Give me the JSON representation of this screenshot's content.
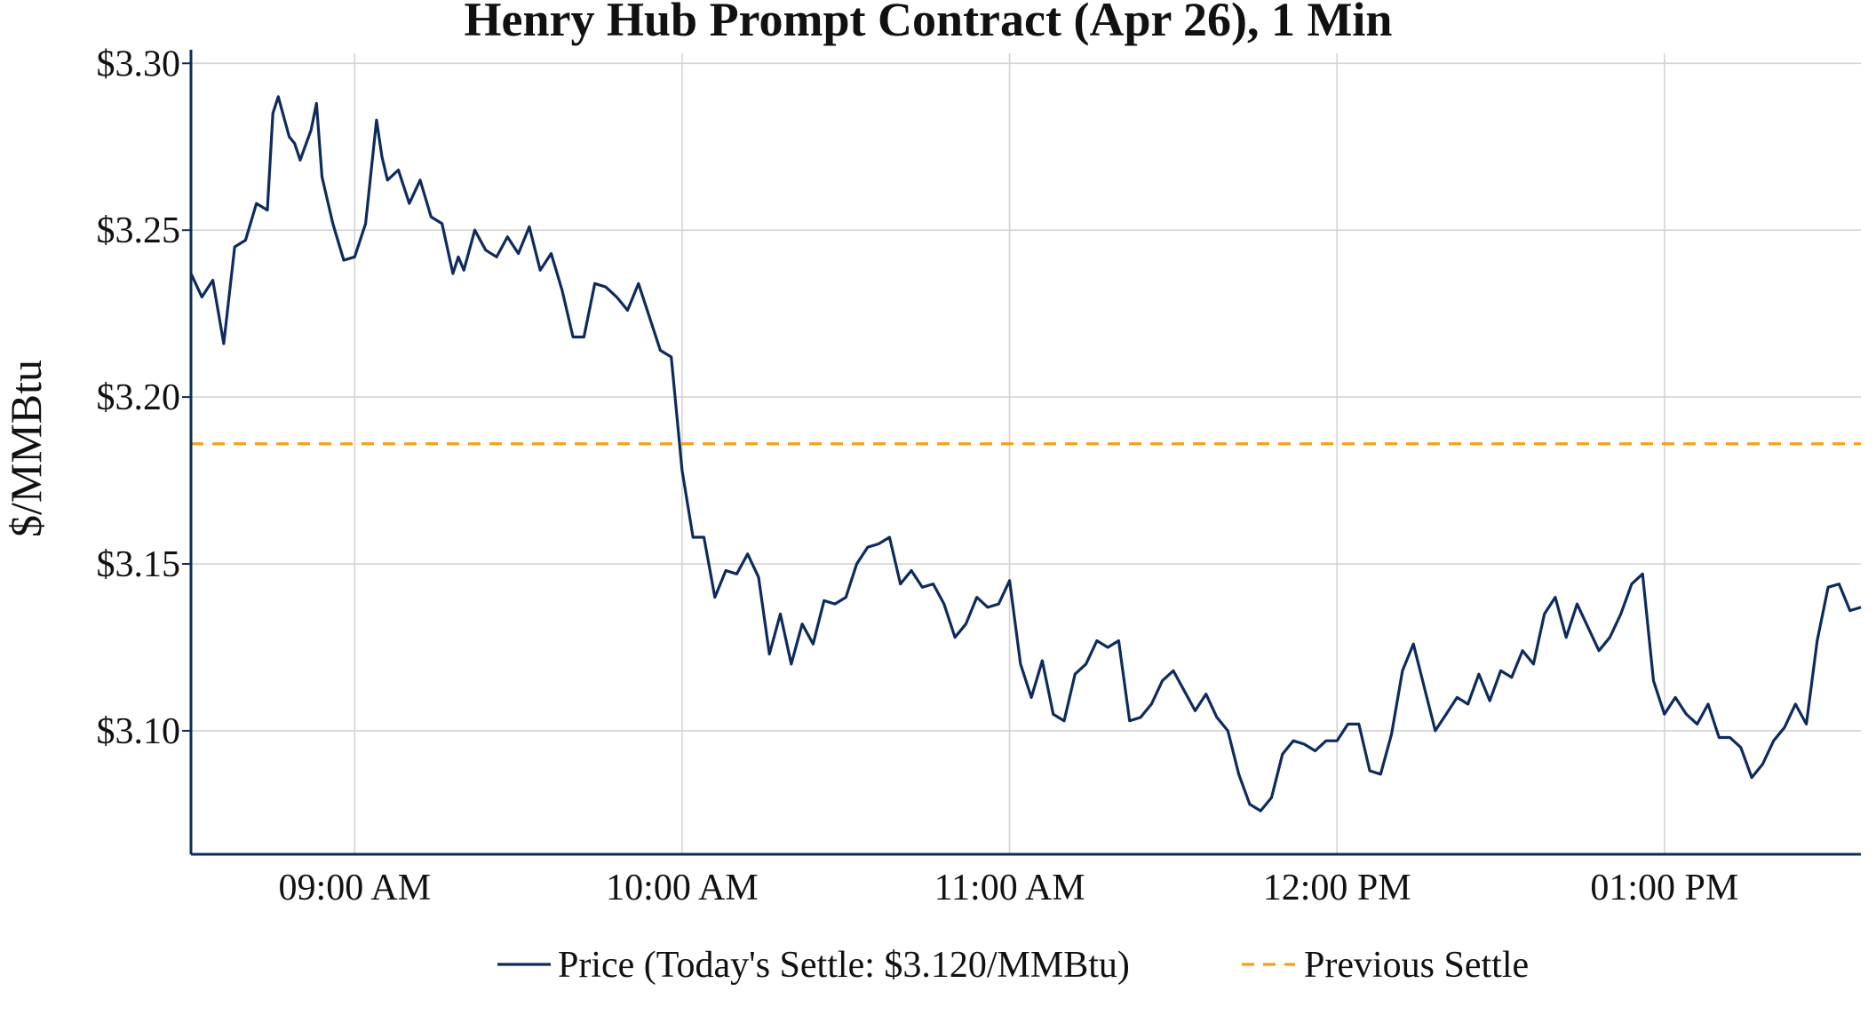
{
  "chart_data": {
    "type": "line",
    "title": "Henry Hub Prompt Contract (Apr 26), 1 Min",
    "ylabel": "$/MMBtu",
    "xlabel": "",
    "xlim": [
      "08:30",
      "13:36"
    ],
    "ylim": [
      3.063,
      3.303
    ],
    "yticks": [
      3.1,
      3.15,
      3.2,
      3.25,
      3.3
    ],
    "ytick_labels": [
      "$3.10",
      "$3.15",
      "$3.20",
      "$3.25",
      "$3.30"
    ],
    "xticks": [
      "09:00",
      "10:00",
      "11:00",
      "12:00",
      "13:00"
    ],
    "xtick_labels": [
      "09:00 AM",
      "10:00 AM",
      "11:00 AM",
      "12:00 PM",
      "01:00 PM"
    ],
    "grid": true,
    "legend_position": "bottom-center",
    "series": [
      {
        "name": "Price (Today's Settle: $3.120/MMBtu)",
        "color": "#0d2b5c",
        "style": "solid",
        "x": [
          "08:30",
          "08:32",
          "08:34",
          "08:36",
          "08:38",
          "08:40",
          "08:42",
          "08:44",
          "08:45",
          "08:46",
          "08:48",
          "08:49",
          "08:50",
          "08:52",
          "08:53",
          "08:54",
          "08:56",
          "08:58",
          "09:00",
          "09:02",
          "09:04",
          "09:05",
          "09:06",
          "09:08",
          "09:10",
          "09:12",
          "09:14",
          "09:16",
          "09:18",
          "09:19",
          "09:20",
          "09:22",
          "09:24",
          "09:26",
          "09:28",
          "09:30",
          "09:32",
          "09:34",
          "09:36",
          "09:38",
          "09:40",
          "09:42",
          "09:44",
          "09:46",
          "09:48",
          "09:50",
          "09:52",
          "09:54",
          "09:56",
          "09:58",
          "10:00",
          "10:02",
          "10:04",
          "10:06",
          "10:08",
          "10:10",
          "10:12",
          "10:14",
          "10:16",
          "10:18",
          "10:20",
          "10:22",
          "10:24",
          "10:26",
          "10:28",
          "10:30",
          "10:32",
          "10:34",
          "10:36",
          "10:38",
          "10:40",
          "10:42",
          "10:44",
          "10:46",
          "10:48",
          "10:50",
          "10:52",
          "10:54",
          "10:56",
          "10:58",
          "11:00",
          "11:02",
          "11:04",
          "11:06",
          "11:08",
          "11:10",
          "11:12",
          "11:14",
          "11:16",
          "11:18",
          "11:20",
          "11:22",
          "11:24",
          "11:26",
          "11:28",
          "11:30",
          "11:32",
          "11:34",
          "11:36",
          "11:38",
          "11:40",
          "11:42",
          "11:44",
          "11:46",
          "11:48",
          "11:50",
          "11:52",
          "11:54",
          "11:56",
          "11:58",
          "12:00",
          "12:02",
          "12:04",
          "12:06",
          "12:08",
          "12:10",
          "12:12",
          "12:14",
          "12:16",
          "12:18",
          "12:20",
          "12:22",
          "12:24",
          "12:26",
          "12:28",
          "12:30",
          "12:32",
          "12:34",
          "12:36",
          "12:38",
          "12:40",
          "12:42",
          "12:44",
          "12:46",
          "12:48",
          "12:50",
          "12:52",
          "12:54",
          "12:56",
          "12:58",
          "13:00",
          "13:02",
          "13:04",
          "13:06",
          "13:08",
          "13:10",
          "13:12",
          "13:14",
          "13:16",
          "13:18",
          "13:20",
          "13:22",
          "13:24",
          "13:26",
          "13:28",
          "13:30",
          "13:32",
          "13:34",
          "13:36"
        ],
        "values": [
          3.237,
          3.23,
          3.235,
          3.216,
          3.245,
          3.247,
          3.258,
          3.256,
          3.285,
          3.29,
          3.278,
          3.276,
          3.271,
          3.28,
          3.288,
          3.266,
          3.252,
          3.241,
          3.242,
          3.252,
          3.283,
          3.272,
          3.265,
          3.268,
          3.258,
          3.265,
          3.254,
          3.252,
          3.237,
          3.242,
          3.238,
          3.25,
          3.244,
          3.242,
          3.248,
          3.243,
          3.251,
          3.238,
          3.243,
          3.232,
          3.218,
          3.218,
          3.234,
          3.233,
          3.23,
          3.226,
          3.234,
          3.224,
          3.214,
          3.212,
          3.178,
          3.158,
          3.158,
          3.14,
          3.148,
          3.147,
          3.153,
          3.146,
          3.123,
          3.135,
          3.12,
          3.132,
          3.126,
          3.139,
          3.138,
          3.14,
          3.15,
          3.155,
          3.156,
          3.158,
          3.144,
          3.148,
          3.143,
          3.144,
          3.138,
          3.128,
          3.132,
          3.14,
          3.137,
          3.138,
          3.145,
          3.12,
          3.11,
          3.121,
          3.105,
          3.103,
          3.117,
          3.12,
          3.127,
          3.125,
          3.127,
          3.103,
          3.104,
          3.108,
          3.115,
          3.118,
          3.112,
          3.106,
          3.111,
          3.104,
          3.1,
          3.087,
          3.078,
          3.076,
          3.08,
          3.093,
          3.097,
          3.096,
          3.094,
          3.097,
          3.097,
          3.102,
          3.102,
          3.088,
          3.087,
          3.099,
          3.118,
          3.126,
          3.113,
          3.1,
          3.105,
          3.11,
          3.108,
          3.117,
          3.109,
          3.118,
          3.116,
          3.124,
          3.12,
          3.135,
          3.14,
          3.128,
          3.138,
          3.131,
          3.124,
          3.128,
          3.135,
          3.144,
          3.147,
          3.115,
          3.105,
          3.11,
          3.105,
          3.102,
          3.108,
          3.098,
          3.098,
          3.095,
          3.086,
          3.09,
          3.097,
          3.101,
          3.108,
          3.102,
          3.127,
          3.143,
          3.144,
          3.136,
          3.137
        ]
      },
      {
        "name": "Previous Settle",
        "color": "#f5a01a",
        "style": "dashed",
        "value": 3.186
      }
    ]
  }
}
